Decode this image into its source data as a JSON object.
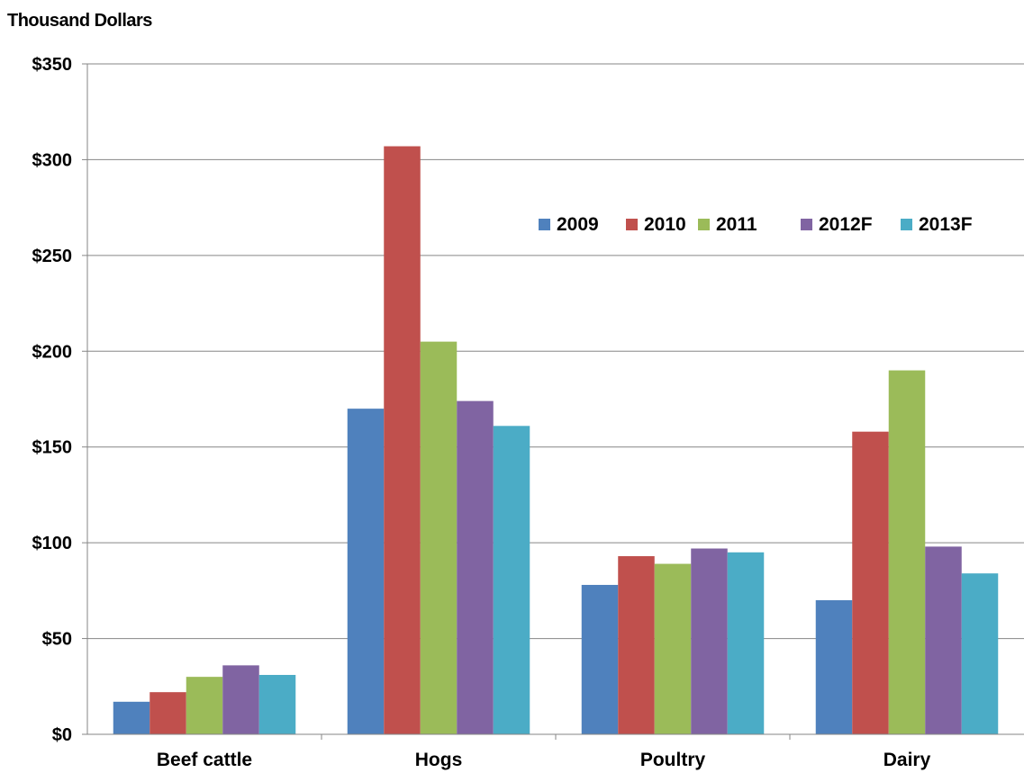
{
  "chart_data": {
    "type": "bar",
    "ylabel": "Thousand Dollars",
    "categories": [
      "Beef cattle",
      "Hogs",
      "Poultry",
      "Dairy"
    ],
    "series": [
      {
        "name": "2009",
        "color": "#4F81BD",
        "values": [
          17,
          170,
          78,
          70
        ]
      },
      {
        "name": "2010",
        "color": "#C0504D",
        "values": [
          22,
          307,
          93,
          158
        ]
      },
      {
        "name": "2011",
        "color": "#9BBB59",
        "values": [
          30,
          205,
          89,
          190
        ]
      },
      {
        "name": "2012F",
        "color": "#8064A2",
        "values": [
          36,
          174,
          97,
          98
        ]
      },
      {
        "name": "2013F",
        "color": "#4BACC6",
        "values": [
          31,
          161,
          95,
          84
        ]
      }
    ],
    "ylim": [
      0,
      350
    ],
    "yticks": [
      0,
      50,
      100,
      150,
      200,
      250,
      300,
      350
    ],
    "ytick_labels": [
      "$0",
      "$50",
      "$100",
      "$150",
      "$200",
      "$250",
      "$300",
      "$350"
    ],
    "grid": true,
    "legend_position": "top-right"
  }
}
